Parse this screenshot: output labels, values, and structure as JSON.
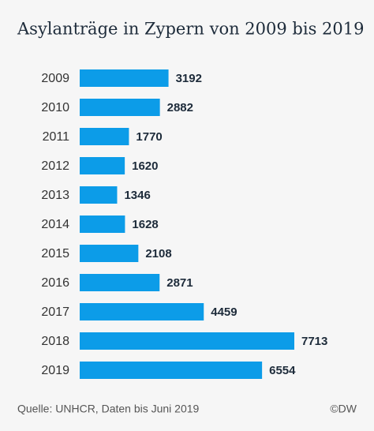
{
  "chart_data": {
    "type": "bar",
    "orientation": "horizontal",
    "title": "Asylanträge in Zypern von 2009 bis 2019",
    "categories": [
      "2009",
      "2010",
      "2011",
      "2012",
      "2013",
      "2014",
      "2015",
      "2016",
      "2017",
      "2018",
      "2019"
    ],
    "values": [
      3192,
      2882,
      1770,
      1620,
      1346,
      1628,
      2108,
      2871,
      4459,
      7713,
      6554
    ],
    "color": "#0c9ce8",
    "source": "Quelle: UNHCR, Daten bis Juni 2019",
    "credit": "©DW"
  }
}
